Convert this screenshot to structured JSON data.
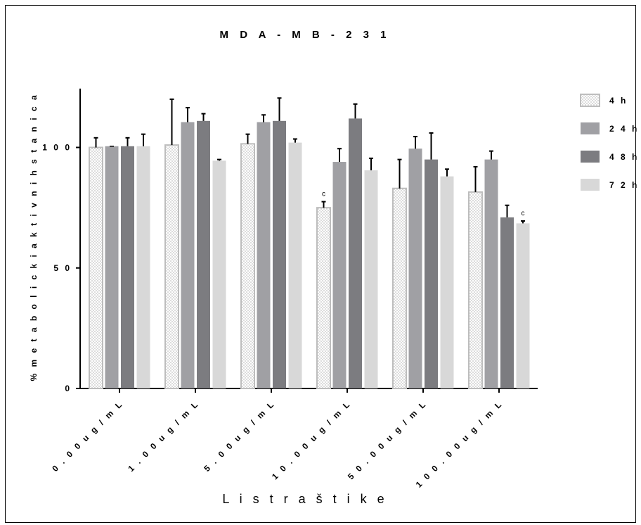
{
  "chart_data": {
    "type": "bar",
    "title": "M D A - M B - 2 3 1",
    "xlabel": "L i s t  r a š t i k e",
    "ylabel": "% m e t a b o l i c k i  a k t i v n i h  s t a n i c a",
    "ylim": [
      0,
      125
    ],
    "yticks": [
      0,
      50,
      100
    ],
    "ytick_labels": [
      "0",
      "5 0",
      "1 0 0"
    ],
    "categories": [
      "0 . 0 0 u g / m L",
      "1 . 0 0 u g / m L",
      "5 . 0 0 u g / m L",
      "1 0 . 0 0 u g / m L",
      "5 0 . 0 0 u g / m L",
      "1 0 0 . 0 0 u g / m L"
    ],
    "series": [
      {
        "name": "4 h",
        "color": "#ffffff",
        "pattern": "dots",
        "values": [
          100,
          101,
          101.5,
          75,
          83,
          81.5
        ],
        "errors": [
          4,
          19,
          4,
          2.5,
          12,
          10.5
        ]
      },
      {
        "name": "2 4 h",
        "color": "#a0a0a4",
        "values": [
          100.5,
          110.5,
          110.5,
          94,
          99.5,
          95
        ],
        "errors": [
          0,
          6,
          3,
          5.5,
          5,
          3.5
        ]
      },
      {
        "name": "4 8 h",
        "color": "#7c7c80",
        "values": [
          100.5,
          111,
          111,
          112,
          95,
          71
        ],
        "errors": [
          3.5,
          3,
          9.5,
          6,
          11,
          5
        ]
      },
      {
        "name": "7 2 h",
        "color": "#d8d8d8",
        "values": [
          100.5,
          94.5,
          102,
          90.5,
          88,
          68.5
        ],
        "errors": [
          5,
          0.5,
          1.5,
          5,
          3,
          1
        ]
      }
    ],
    "annotations": [
      {
        "text": "c",
        "category": 3,
        "series": 0
      },
      {
        "text": "c",
        "category": 5,
        "series": 3
      }
    ],
    "legend_position": "right",
    "grid": false
  }
}
